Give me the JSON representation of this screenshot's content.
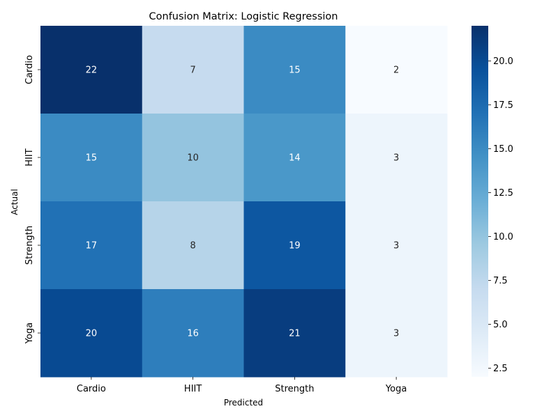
{
  "chart_data": {
    "type": "heatmap",
    "title": "Confusion Matrix: Logistic Regression",
    "xlabel": "Predicted",
    "ylabel": "Actual",
    "x_categories": [
      "Cardio",
      "HIIT",
      "Strength",
      "Yoga"
    ],
    "y_categories": [
      "Cardio",
      "HIIT",
      "Strength",
      "Yoga"
    ],
    "values": [
      [
        22,
        7,
        15,
        2
      ],
      [
        15,
        10,
        14,
        3
      ],
      [
        17,
        8,
        19,
        3
      ],
      [
        20,
        16,
        21,
        3
      ]
    ],
    "colormap": "Blues",
    "color_range": [
      2,
      22
    ],
    "colorbar_ticks": [
      "2.5",
      "5.0",
      "7.5",
      "10.0",
      "12.5",
      "15.0",
      "17.5",
      "20.0"
    ],
    "colorbar_tick_values": [
      2.5,
      5.0,
      7.5,
      10.0,
      12.5,
      15.0,
      17.5,
      20.0
    ],
    "annotate_cells": true,
    "grid": false,
    "legend": "colorbar-right"
  }
}
